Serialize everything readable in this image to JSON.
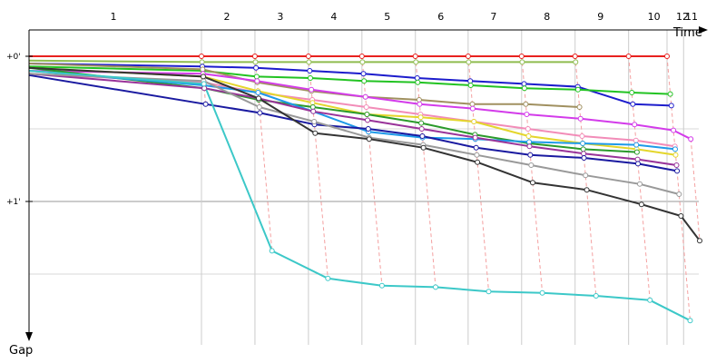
{
  "chart_data": {
    "type": "line",
    "xlabel": "Time",
    "ylabel": "Gap",
    "x_range_seconds": [
      0,
      90
    ],
    "y_range_seconds": [
      -0.15,
      1.85
    ],
    "grid": true,
    "y_ticks": [
      {
        "value": 0,
        "label": "+0'"
      },
      {
        "value": 1,
        "label": "+1'"
      }
    ],
    "laps": [
      {
        "label": "1",
        "time": 0
      },
      {
        "label": "2",
        "time": 27.7
      },
      {
        "label": "3",
        "time": 34.8
      },
      {
        "label": "4",
        "time": 41.9
      },
      {
        "label": "5",
        "time": 49.0
      },
      {
        "label": "6",
        "time": 56.1
      },
      {
        "label": "7",
        "time": 63.1
      },
      {
        "label": "8",
        "time": 70.2
      },
      {
        "label": "9",
        "time": 77.3
      },
      {
        "label": "10",
        "time": 84.4
      },
      {
        "label": "12",
        "time": 89.5
      },
      {
        "label": "11",
        "time": 91.7
      }
    ],
    "series": [
      {
        "color": "#e8211f",
        "values": [
          0.0,
          0.0,
          0.0,
          0.0,
          0.0,
          0.0,
          0.0,
          0.0,
          0.0,
          0.0,
          0.0
        ]
      },
      {
        "color": "#8fbc4f",
        "values": [
          0.03,
          0.04,
          0.04,
          0.04,
          0.04,
          0.04,
          0.04,
          0.04,
          0.04
        ]
      },
      {
        "color": "#1c1ccc",
        "values": [
          0.05,
          0.07,
          0.08,
          0.1,
          0.12,
          0.15,
          0.17,
          0.19,
          0.21,
          0.33,
          0.34
        ]
      },
      {
        "color": "#22c322",
        "values": [
          0.07,
          0.1,
          0.14,
          0.15,
          0.17,
          0.18,
          0.2,
          0.22,
          0.23,
          0.25,
          0.26
        ]
      },
      {
        "color": "#a09060",
        "values": [
          0.05,
          0.09,
          0.18,
          0.24,
          0.28,
          0.3,
          0.33,
          0.33,
          0.35
        ]
      },
      {
        "color": "#d33bea",
        "values": [
          0.1,
          0.12,
          0.17,
          0.23,
          0.28,
          0.33,
          0.36,
          0.4,
          0.43,
          0.47,
          0.51,
          0.57
        ]
      },
      {
        "color": "#f28cb8",
        "values": [
          0.12,
          0.18,
          0.25,
          0.3,
          0.35,
          0.4,
          0.45,
          0.5,
          0.55,
          0.58,
          0.62
        ]
      },
      {
        "color": "#e4d62c",
        "values": [
          0.08,
          0.14,
          0.24,
          0.32,
          0.4,
          0.42,
          0.45,
          0.55,
          0.6,
          0.64,
          0.68
        ]
      },
      {
        "color": "#2a9a2a",
        "values": [
          0.08,
          0.22,
          0.3,
          0.35,
          0.4,
          0.46,
          0.54,
          0.6,
          0.64,
          0.66
        ]
      },
      {
        "color": "#1e9ae8",
        "values": [
          0.1,
          0.2,
          0.25,
          0.38,
          0.52,
          0.56,
          0.57,
          0.59,
          0.6,
          0.61,
          0.64
        ]
      },
      {
        "color": "#993399",
        "values": [
          0.12,
          0.22,
          0.29,
          0.38,
          0.44,
          0.5,
          0.56,
          0.62,
          0.67,
          0.71,
          0.75
        ]
      },
      {
        "color": "#1a1aa0",
        "values": [
          0.13,
          0.33,
          0.39,
          0.47,
          0.5,
          0.55,
          0.63,
          0.68,
          0.7,
          0.74,
          0.79
        ]
      },
      {
        "color": "#999999",
        "values": [
          0.12,
          0.17,
          0.35,
          0.45,
          0.56,
          0.61,
          0.68,
          0.75,
          0.82,
          0.88,
          0.95
        ]
      },
      {
        "color": "#333333",
        "values": [
          0.08,
          0.14,
          0.29,
          0.53,
          0.57,
          0.63,
          0.73,
          0.87,
          0.92,
          1.02,
          1.1,
          1.27
        ]
      },
      {
        "color": "#3cc8c8",
        "values": [
          0.1,
          0.19,
          1.34,
          1.53,
          1.58,
          1.59,
          1.62,
          1.63,
          1.65,
          1.68,
          1.82
        ]
      }
    ]
  }
}
